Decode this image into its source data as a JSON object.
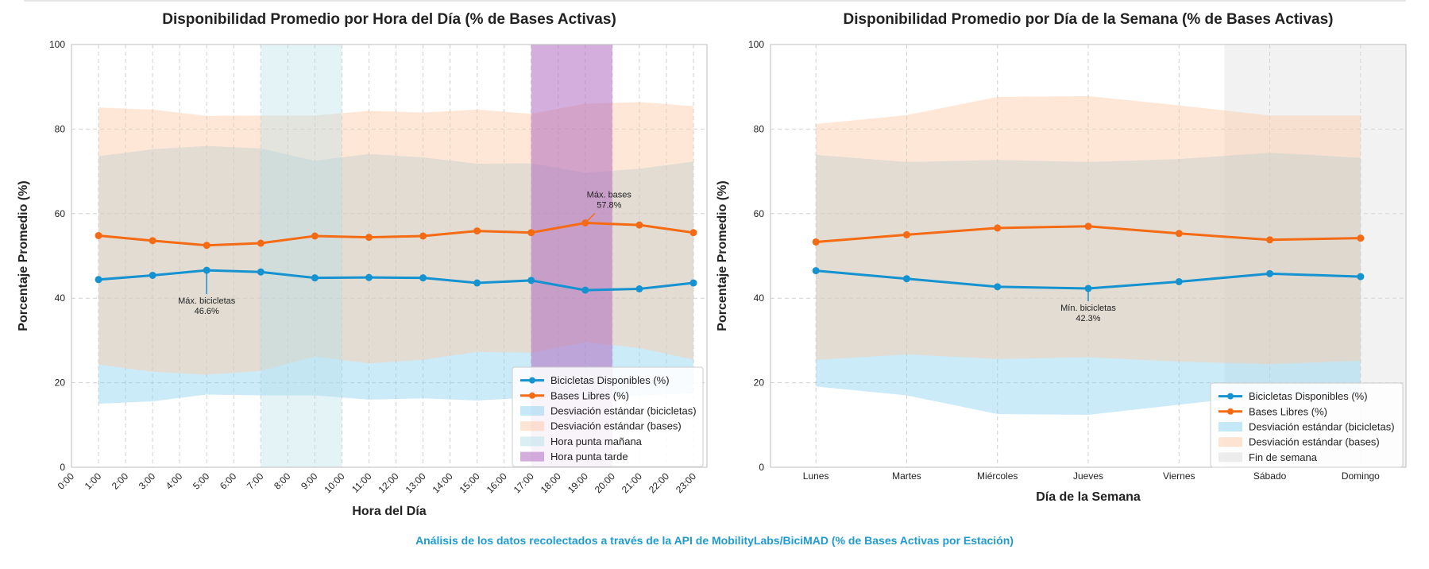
{
  "footer": "Análisis de los datos recolectados a través de la API de MobilityLabs/BiciMAD (% de Bases Activas por Estación)",
  "colors": {
    "bikes": "#1592d0",
    "bases": "#f56b14",
    "bikes_band": "#8ed3ef",
    "bases_band": "#fdc9a7",
    "morning_peak": "#b6e0e8",
    "evening_peak": "#b16cc0",
    "weekend": "#dcdcdc",
    "grid": "#d0d0d0"
  },
  "chart_data": [
    {
      "type": "line",
      "title": "Disponibilidad Promedio por Hora del Día (% de Bases Activas)",
      "xlabel": "Hora del Día",
      "ylabel": "Porcentaje Promedio (%)",
      "xlim": [
        0,
        23.5
      ],
      "ylim": [
        0,
        100
      ],
      "yticks": [
        0,
        20,
        40,
        60,
        80,
        100
      ],
      "xticks": [
        0,
        1,
        2,
        3,
        4,
        5,
        6,
        7,
        8,
        9,
        10,
        11,
        12,
        13,
        14,
        15,
        16,
        17,
        18,
        19,
        20,
        21,
        22,
        23
      ],
      "xticklabels": [
        "0:00",
        "1:00",
        "2:00",
        "3:00",
        "4:00",
        "5:00",
        "6:00",
        "7:00",
        "8:00",
        "9:00",
        "10:00",
        "11:00",
        "12:00",
        "13:00",
        "14:00",
        "15:00",
        "16:00",
        "17:00",
        "18:00",
        "19:00",
        "20:00",
        "21:00",
        "22:00",
        "23:00"
      ],
      "x": [
        1,
        3,
        5,
        7,
        9,
        11,
        13,
        15,
        17,
        19,
        21,
        23
      ],
      "series": [
        {
          "name": "Bicicletas Disponibles (%)",
          "values": [
            44.4,
            45.4,
            46.6,
            46.2,
            44.8,
            44.9,
            44.8,
            43.6,
            44.2,
            41.9,
            42.2,
            43.6
          ]
        },
        {
          "name": "Bases Libres (%)",
          "values": [
            54.8,
            53.6,
            52.5,
            53.0,
            54.7,
            54.4,
            54.7,
            55.9,
            55.5,
            57.8,
            57.3,
            55.5
          ]
        }
      ],
      "bands": [
        {
          "name": "Desviación estándar (bicicletas)",
          "lower": [
            15.0,
            15.6,
            17.2,
            17.0,
            17.0,
            16.0,
            16.3,
            15.8,
            16.5,
            16.5,
            17.0,
            17.5
          ],
          "upper": [
            73.6,
            75.2,
            76.0,
            75.4,
            72.5,
            74.1,
            73.3,
            71.8,
            71.9,
            69.7,
            70.6,
            72.3
          ]
        },
        {
          "name": "Desviación estándar (bases)",
          "lower": [
            24.3,
            22.6,
            21.9,
            22.8,
            26.2,
            24.6,
            25.4,
            27.3,
            27.1,
            29.6,
            28.2,
            25.5
          ],
          "upper": [
            85.1,
            84.6,
            83.1,
            83.2,
            83.2,
            84.3,
            83.9,
            84.6,
            83.6,
            86.0,
            86.4,
            85.4
          ]
        }
      ],
      "spans": [
        {
          "name": "Hora punta mañana",
          "from": 7,
          "to": 10
        },
        {
          "name": "Hora punta tarde",
          "from": 17,
          "to": 20
        }
      ],
      "annotations": [
        {
          "line1": "Máx. bicicletas",
          "line2": "46.6%",
          "x": 5,
          "y": 46.6
        },
        {
          "line1": "Máx. bases",
          "line2": "57.8%",
          "x": 19,
          "y": 57.8
        }
      ],
      "legend": {
        "position": "lower-right",
        "items": [
          {
            "label": "Bicicletas Disponibles (%)",
            "kind": "line",
            "color": "bikes"
          },
          {
            "label": "Bases Libres (%)",
            "kind": "line",
            "color": "bases"
          },
          {
            "label": "Desviación estándar (bicicletas)",
            "kind": "patch",
            "color": "bikes_band"
          },
          {
            "label": "Desviación estándar (bases)",
            "kind": "patch",
            "color": "bases_band"
          },
          {
            "label": "Hora punta mañana",
            "kind": "patch",
            "color": "morning_peak"
          },
          {
            "label": "Hora punta tarde",
            "kind": "patch",
            "color": "evening_peak"
          }
        ]
      }
    },
    {
      "type": "line",
      "title": "Disponibilidad Promedio por Día de la Semana (% de Bases Activas)",
      "xlabel": "Día de la Semana",
      "ylabel": "Porcentaje Promedio (%)",
      "xlim": [
        -0.5,
        6.5
      ],
      "ylim": [
        0,
        100
      ],
      "yticks": [
        0,
        20,
        40,
        60,
        80,
        100
      ],
      "categories": [
        "Lunes",
        "Martes",
        "Miércoles",
        "Jueves",
        "Viernes",
        "Sábado",
        "Domingo"
      ],
      "x": [
        0,
        1,
        2,
        3,
        4,
        5,
        6
      ],
      "series": [
        {
          "name": "Bicicletas Disponibles (%)",
          "values": [
            46.5,
            44.6,
            42.7,
            42.3,
            43.9,
            45.8,
            45.1
          ]
        },
        {
          "name": "Bases Libres (%)",
          "values": [
            53.3,
            55.0,
            56.6,
            57.0,
            55.3,
            53.8,
            54.2
          ]
        }
      ],
      "bands": [
        {
          "name": "Desviación estándar (bicicletas)",
          "lower": [
            19.1,
            17.0,
            12.6,
            12.4,
            14.8,
            17.2,
            17.0
          ],
          "upper": [
            73.9,
            72.2,
            72.7,
            72.2,
            72.9,
            74.4,
            73.2
          ]
        },
        {
          "name": "Desviación estándar (bases)",
          "lower": [
            25.4,
            26.7,
            25.6,
            26.0,
            25.0,
            24.4,
            25.2
          ],
          "upper": [
            81.2,
            83.3,
            87.6,
            87.8,
            85.6,
            83.2,
            83.2
          ]
        }
      ],
      "spans": [
        {
          "name": "Fin de semana",
          "from": 4.5,
          "to": 6.5
        }
      ],
      "annotations": [
        {
          "line1": "Mín. bicicletas",
          "line2": "42.3%",
          "x": 3,
          "y": 42.3
        }
      ],
      "legend": {
        "position": "lower-right",
        "items": [
          {
            "label": "Bicicletas Disponibles (%)",
            "kind": "line",
            "color": "bikes"
          },
          {
            "label": "Bases Libres (%)",
            "kind": "line",
            "color": "bases"
          },
          {
            "label": "Desviación estándar (bicicletas)",
            "kind": "patch",
            "color": "bikes_band"
          },
          {
            "label": "Desviación estándar (bases)",
            "kind": "patch",
            "color": "bases_band"
          },
          {
            "label": "Fin de semana",
            "kind": "patch",
            "color": "weekend"
          }
        ]
      }
    }
  ]
}
